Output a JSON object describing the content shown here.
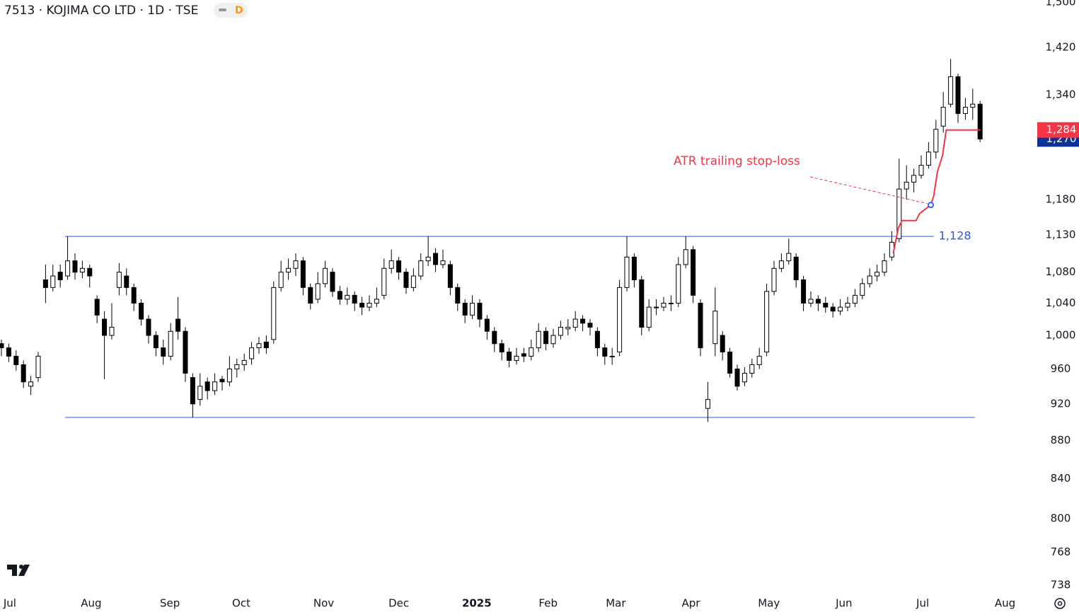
{
  "chart_data": {
    "type": "candlestick",
    "title": "7513 · KOJIMA CO LTD · 1D · TSE",
    "badge": "D",
    "log_scale": true,
    "ylim": [
      731,
      1504
    ],
    "yticks": [
      738,
      768,
      800,
      840,
      880,
      920,
      960,
      {
        "value": 1000,
        "label": "1,000"
      },
      {
        "value": 1040,
        "label": "1,040"
      },
      {
        "value": 1080,
        "label": "1,080"
      },
      {
        "value": 1130,
        "label": "1,130"
      },
      {
        "value": 1180,
        "label": "1,180"
      },
      {
        "value": 1340,
        "label": "1,340"
      },
      {
        "value": 1420,
        "label": "1,420"
      },
      {
        "value": 1500,
        "label": "1,500"
      }
    ],
    "xlim": [
      -0.19,
      138.27
    ],
    "xticks": [
      {
        "value": 1.15,
        "label": "Jul"
      },
      {
        "value": 12.2,
        "label": "Aug"
      },
      {
        "value": 22.9,
        "label": "Sep"
      },
      {
        "value": 32.6,
        "label": "Oct"
      },
      {
        "value": 43.8,
        "label": "Nov"
      },
      {
        "value": 54,
        "label": "Dec"
      },
      {
        "value": 64.6,
        "label": "2025"
      },
      {
        "value": 74.3,
        "label": "Feb"
      },
      {
        "value": 83.5,
        "label": "Mar"
      },
      {
        "value": 93.7,
        "label": "Apr"
      },
      {
        "value": 104.3,
        "label": "May"
      },
      {
        "value": 114.5,
        "label": "Jun"
      },
      {
        "value": 125.2,
        "label": "Jul"
      },
      {
        "value": 136.4,
        "label": "Aug"
      }
    ],
    "up_color": "#ffffff",
    "down_color": "#000000",
    "candles": [
      [
        990,
        995,
        975,
        985
      ],
      [
        985,
        990,
        968,
        975
      ],
      [
        975,
        982,
        958,
        965
      ],
      [
        965,
        970,
        938,
        945
      ],
      [
        940,
        952,
        930,
        945
      ],
      [
        950,
        980,
        945,
        975
      ],
      [
        1070,
        1090,
        1040,
        1060
      ],
      [
        1060,
        1090,
        1055,
        1075
      ],
      [
        1080,
        1090,
        1060,
        1070
      ],
      [
        1075,
        1128,
        1070,
        1095
      ],
      [
        1095,
        1105,
        1070,
        1080
      ],
      [
        1080,
        1095,
        1072,
        1085
      ],
      [
        1085,
        1090,
        1060,
        1075
      ],
      [
        1045,
        1050,
        1015,
        1025
      ],
      [
        1020,
        1030,
        948,
        1000
      ],
      [
        1000,
        1040,
        995,
        1010
      ],
      [
        1060,
        1092,
        1050,
        1080
      ],
      [
        1075,
        1085,
        1050,
        1060
      ],
      [
        1060,
        1065,
        1030,
        1040
      ],
      [
        1040,
        1045,
        1012,
        1020
      ],
      [
        1020,
        1025,
        990,
        1000
      ],
      [
        1000,
        1005,
        975,
        985
      ],
      [
        985,
        995,
        965,
        975
      ],
      [
        975,
        1015,
        970,
        1005
      ],
      [
        1020,
        1048,
        995,
        1005
      ],
      [
        1005,
        1010,
        945,
        955
      ],
      [
        950,
        955,
        905,
        920
      ],
      [
        925,
        955,
        918,
        940
      ],
      [
        945,
        950,
        925,
        935
      ],
      [
        935,
        955,
        930,
        945
      ],
      [
        948,
        952,
        935,
        945
      ],
      [
        945,
        975,
        940,
        960
      ],
      [
        960,
        972,
        950,
        965
      ],
      [
        965,
        978,
        958,
        970
      ],
      [
        972,
        992,
        965,
        985
      ],
      [
        985,
        998,
        978,
        990
      ],
      [
        992,
        1000,
        978,
        985
      ],
      [
        995,
        1068,
        990,
        1060
      ],
      [
        1060,
        1095,
        1055,
        1080
      ],
      [
        1080,
        1098,
        1070,
        1085
      ],
      [
        1085,
        1105,
        1075,
        1095
      ],
      [
        1095,
        1100,
        1050,
        1060
      ],
      [
        1060,
        1065,
        1032,
        1040
      ],
      [
        1045,
        1080,
        1040,
        1065
      ],
      [
        1065,
        1095,
        1060,
        1085
      ],
      [
        1080,
        1085,
        1048,
        1055
      ],
      [
        1055,
        1062,
        1038,
        1045
      ],
      [
        1045,
        1060,
        1038,
        1050
      ],
      [
        1050,
        1055,
        1030,
        1040
      ],
      [
        1040,
        1048,
        1025,
        1035
      ],
      [
        1035,
        1050,
        1030,
        1040
      ],
      [
        1040,
        1060,
        1035,
        1045
      ],
      [
        1050,
        1098,
        1045,
        1085
      ],
      [
        1085,
        1110,
        1078,
        1095
      ],
      [
        1095,
        1100,
        1070,
        1080
      ],
      [
        1080,
        1085,
        1052,
        1060
      ],
      [
        1060,
        1085,
        1055,
        1075
      ],
      [
        1075,
        1105,
        1070,
        1095
      ],
      [
        1095,
        1128,
        1088,
        1100
      ],
      [
        1105,
        1112,
        1080,
        1090
      ],
      [
        1090,
        1110,
        1085,
        1095
      ],
      [
        1090,
        1095,
        1050,
        1060
      ],
      [
        1060,
        1065,
        1030,
        1040
      ],
      [
        1040,
        1045,
        1015,
        1025
      ],
      [
        1025,
        1050,
        1020,
        1040
      ],
      [
        1040,
        1045,
        1010,
        1020
      ],
      [
        1020,
        1025,
        995,
        1005
      ],
      [
        1005,
        1010,
        980,
        990
      ],
      [
        990,
        995,
        970,
        980
      ],
      [
        980,
        985,
        962,
        970
      ],
      [
        970,
        985,
        965,
        975
      ],
      [
        978,
        985,
        968,
        975
      ],
      [
        975,
        995,
        970,
        985
      ],
      [
        985,
        1015,
        980,
        1005
      ],
      [
        1005,
        1010,
        982,
        990
      ],
      [
        990,
        1008,
        985,
        1000
      ],
      [
        1000,
        1018,
        995,
        1010
      ],
      [
        1008,
        1020,
        1000,
        1010
      ],
      [
        1010,
        1030,
        1005,
        1020
      ],
      [
        1020,
        1025,
        1005,
        1015
      ],
      [
        1015,
        1020,
        1000,
        1010
      ],
      [
        1005,
        1010,
        975,
        985
      ],
      [
        985,
        990,
        965,
        975
      ],
      [
        975,
        985,
        965,
        975
      ],
      [
        980,
        1070,
        975,
        1060
      ],
      [
        1060,
        1128,
        1055,
        1100
      ],
      [
        1100,
        1105,
        1060,
        1070
      ],
      [
        1070,
        1075,
        1000,
        1010
      ],
      [
        1010,
        1045,
        1005,
        1035
      ],
      [
        1035,
        1045,
        1025,
        1035
      ],
      [
        1035,
        1048,
        1030,
        1040
      ],
      [
        1040,
        1050,
        1030,
        1040
      ],
      [
        1040,
        1100,
        1035,
        1090
      ],
      [
        1090,
        1128,
        1085,
        1110
      ],
      [
        1110,
        1115,
        1040,
        1050
      ],
      [
        1040,
        1045,
        975,
        985
      ],
      [
        915,
        945,
        900,
        925
      ],
      [
        990,
        1060,
        975,
        1030
      ],
      [
        1000,
        1005,
        970,
        980
      ],
      [
        980,
        985,
        950,
        955
      ],
      [
        960,
        965,
        935,
        940
      ],
      [
        945,
        962,
        940,
        955
      ],
      [
        955,
        972,
        950,
        965
      ],
      [
        965,
        985,
        960,
        975
      ],
      [
        980,
        1065,
        975,
        1055
      ],
      [
        1055,
        1095,
        1050,
        1085
      ],
      [
        1085,
        1105,
        1080,
        1095
      ],
      [
        1095,
        1125,
        1090,
        1105
      ],
      [
        1100,
        1105,
        1060,
        1070
      ],
      [
        1070,
        1075,
        1030,
        1040
      ],
      [
        1040,
        1055,
        1035,
        1045
      ],
      [
        1045,
        1050,
        1030,
        1040
      ],
      [
        1040,
        1048,
        1028,
        1035
      ],
      [
        1035,
        1040,
        1022,
        1030
      ],
      [
        1030,
        1045,
        1025,
        1035
      ],
      [
        1035,
        1048,
        1030,
        1040
      ],
      [
        1040,
        1058,
        1035,
        1050
      ],
      [
        1050,
        1072,
        1045,
        1065
      ],
      [
        1065,
        1085,
        1060,
        1075
      ],
      [
        1075,
        1090,
        1068,
        1080
      ],
      [
        1080,
        1105,
        1075,
        1095
      ],
      [
        1100,
        1135,
        1095,
        1120
      ],
      [
        1125,
        1240,
        1120,
        1195
      ],
      [
        1195,
        1230,
        1180,
        1205
      ],
      [
        1205,
        1225,
        1190,
        1215
      ],
      [
        1215,
        1245,
        1210,
        1230
      ],
      [
        1230,
        1265,
        1225,
        1250
      ],
      [
        1250,
        1300,
        1240,
        1285
      ],
      [
        1290,
        1345,
        1280,
        1320
      ],
      [
        1325,
        1400,
        1320,
        1370
      ],
      [
        1370,
        1375,
        1295,
        1310
      ],
      [
        1310,
        1335,
        1300,
        1320
      ],
      [
        1320,
        1350,
        1300,
        1325
      ],
      [
        1325,
        1330,
        1265,
        1270
      ]
    ],
    "levels": [
      {
        "value": 1128,
        "label": "1,128",
        "x": [
          8.65,
          126.7
        ],
        "color": "#2f57e0"
      },
      {
        "value": 905,
        "x": [
          8.65,
          132.3
        ],
        "color": "#2f57e0"
      }
    ],
    "atr": {
      "annotation": "ATR trailing stop-loss",
      "color": "#f23645",
      "x": [
        121.2,
        121.9,
        122.4,
        124.3,
        124.8,
        126.3,
        126.7,
        127.2,
        127.9,
        128.4,
        133
      ],
      "values": [
        1105,
        1140,
        1150,
        1150,
        1160,
        1172,
        1185,
        1220,
        1245,
        1284,
        1284
      ],
      "marker": {
        "x": 126.3,
        "value": 1172
      }
    },
    "price_labels": [
      {
        "value": 1270,
        "label": "1,270",
        "color": "#0c3299"
      },
      {
        "value": 1284,
        "label": "1,284",
        "color": "#f23645"
      }
    ]
  }
}
